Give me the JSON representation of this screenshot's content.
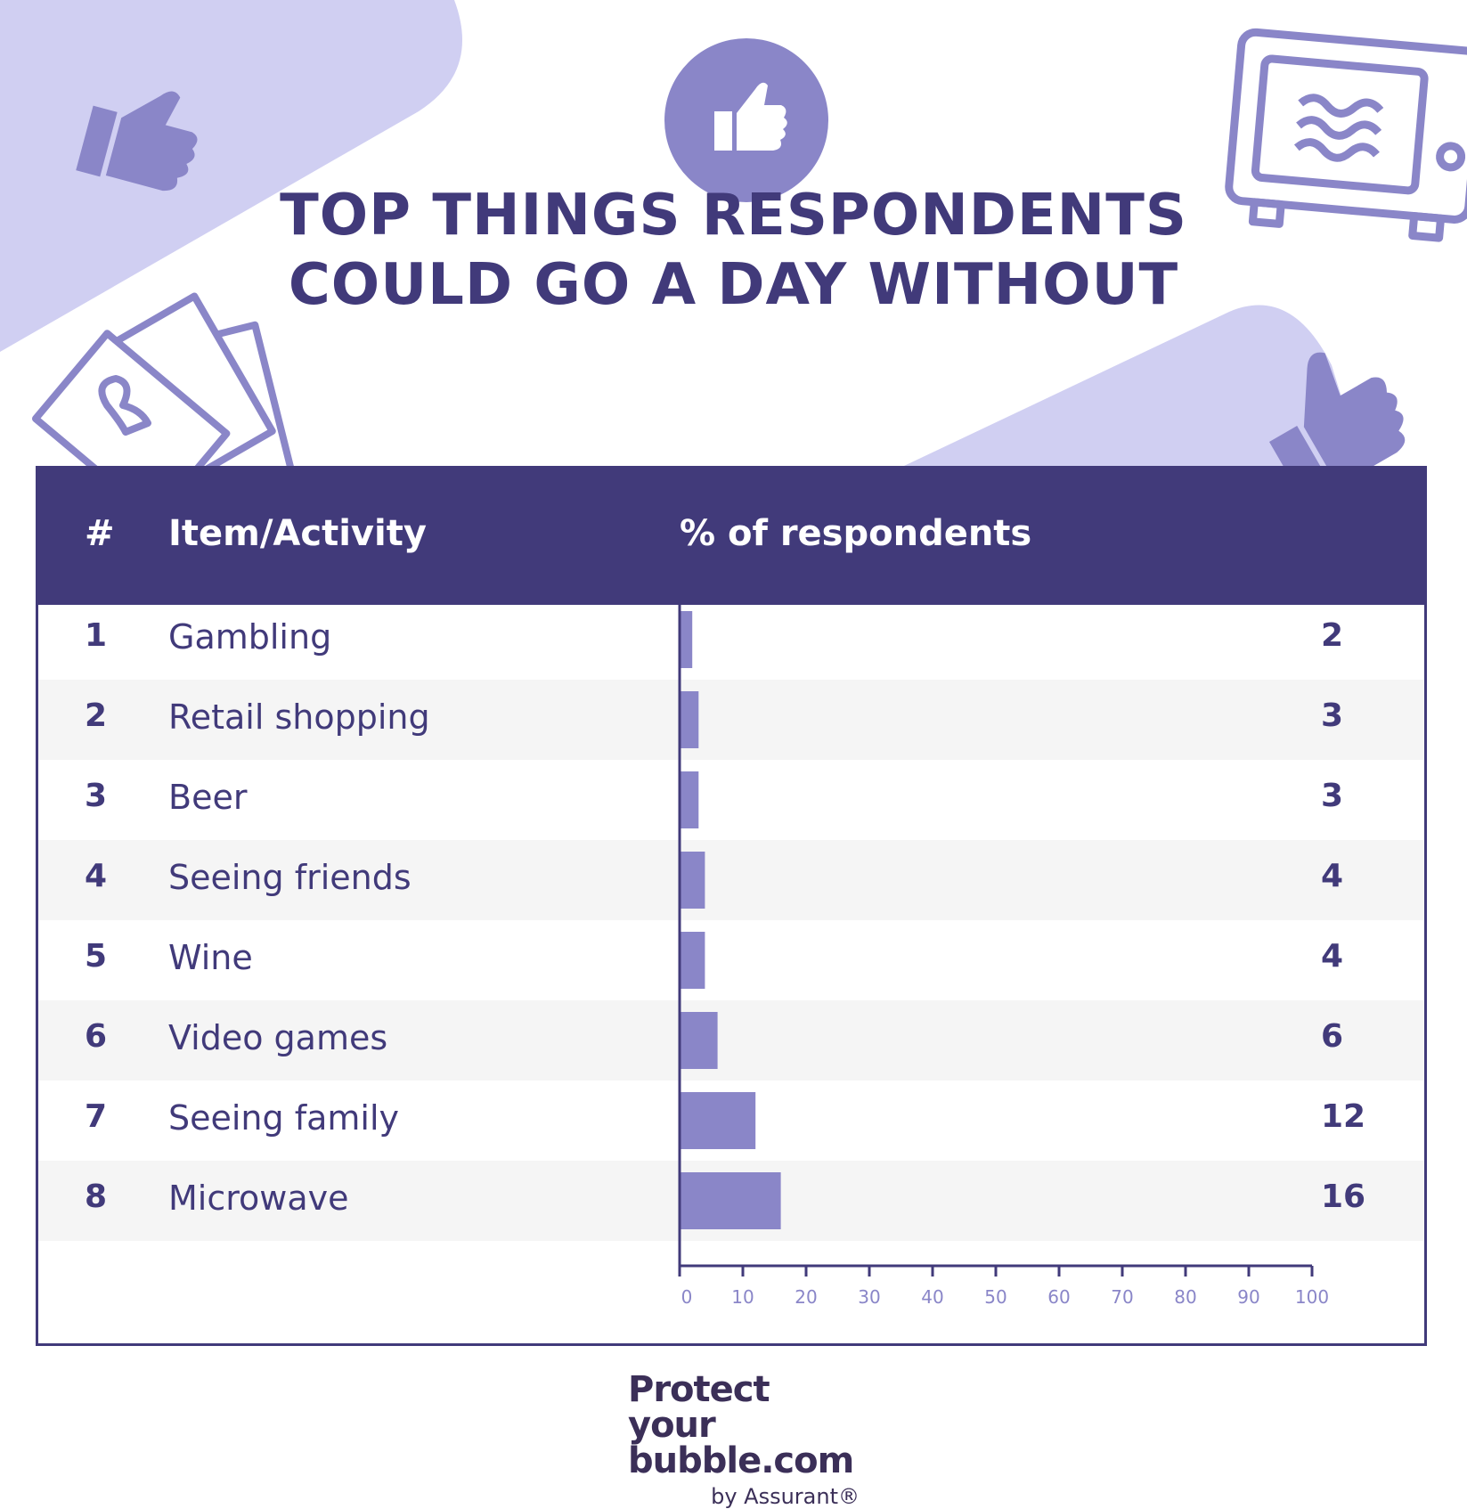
{
  "title": {
    "line1": "TOP THINGS RESPONDENTS",
    "line2": "COULD GO A DAY WITHOUT"
  },
  "table": {
    "headers": {
      "rank": "#",
      "item": "Item/Activity",
      "percent": "% of respondents"
    }
  },
  "chart_data": {
    "type": "bar",
    "orientation": "horizontal",
    "title": "TOP THINGS RESPONDENTS COULD GO A DAY WITHOUT",
    "xlabel": "% of respondents",
    "ranks": [
      "1",
      "2",
      "3",
      "4",
      "5",
      "6",
      "7",
      "8"
    ],
    "categories": [
      "Gambling",
      "Retail shopping",
      "Beer",
      "Seeing friends",
      "Wine",
      "Video games",
      "Seeing family",
      "Microwave"
    ],
    "values": [
      2,
      3,
      3,
      4,
      4,
      6,
      12,
      16
    ],
    "xlim": [
      0,
      100
    ],
    "x_ticks": [
      "0",
      "10",
      "20",
      "30",
      "40",
      "50",
      "60",
      "70",
      "80",
      "90",
      "100"
    ],
    "bar_color": "#8a86c8",
    "grid": false
  },
  "colors": {
    "primary": "#413a7a",
    "accent": "#8a86c8",
    "light_blob": "#d0cff2",
    "row_alt": "#f5f5f5"
  },
  "icons": [
    "thumbs-up-icon",
    "microwave-icon",
    "playing-cards-icon"
  ],
  "brand": {
    "line1": "Protect your",
    "line2": "bubble.com",
    "line3": "by Assurant®"
  }
}
